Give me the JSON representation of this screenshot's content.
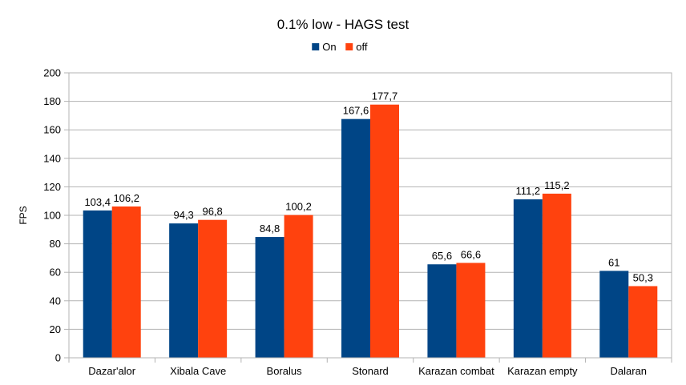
{
  "chart_data": {
    "type": "bar",
    "title": "0.1% low - HAGS test",
    "xlabel": "",
    "ylabel": "FPS",
    "ylim": [
      0,
      200
    ],
    "yticks": [
      0,
      20,
      40,
      60,
      80,
      100,
      120,
      140,
      160,
      180,
      200
    ],
    "grid": true,
    "legend_position": "top",
    "categories": [
      "Dazar'alor",
      "Xibala Cave",
      "Boralus",
      "Stonard",
      "Karazan combat",
      "Karazan empty",
      "Dalaran"
    ],
    "series": [
      {
        "name": "On",
        "color": "#004586",
        "values": [
          103.4,
          94.3,
          84.8,
          167.6,
          65.6,
          111.2,
          61
        ],
        "labels": [
          "103,4",
          "94,3",
          "84,8",
          "167,6",
          "65,6",
          "111,2",
          "61"
        ]
      },
      {
        "name": "off",
        "color": "#ff420e",
        "values": [
          106.2,
          96.8,
          100.2,
          177.7,
          66.6,
          115.2,
          50.3
        ],
        "labels": [
          "106,2",
          "96,8",
          "100,2",
          "177,7",
          "66,6",
          "115,2",
          "50,3"
        ]
      }
    ]
  }
}
